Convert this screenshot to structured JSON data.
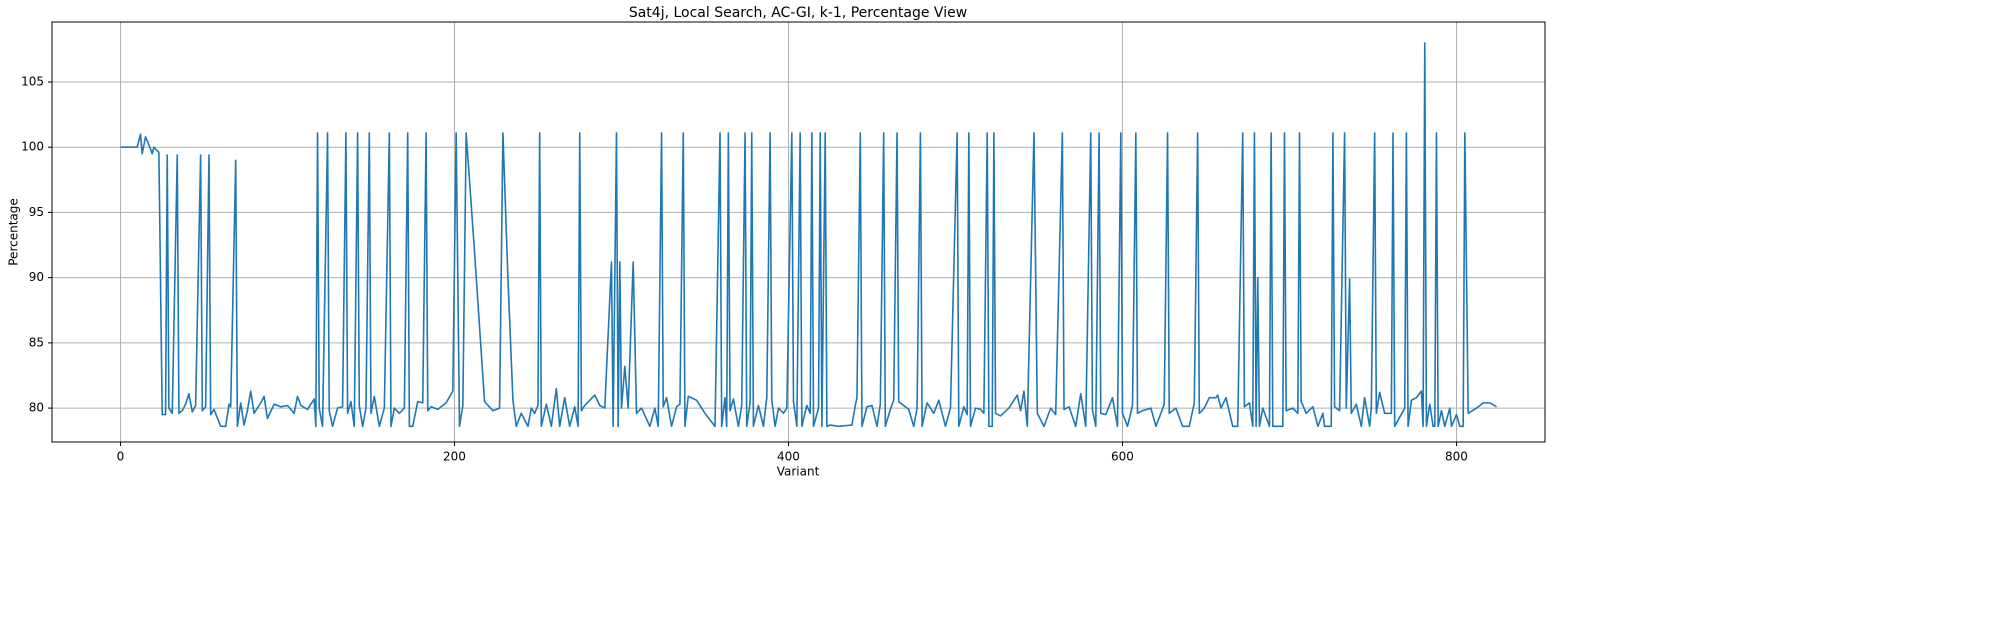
{
  "chart_data": {
    "type": "line",
    "title": "Sat4j, Local Search, AC-GI, k-1, Percentage View",
    "x_label": "Variant",
    "y_label": "Percentage",
    "xlim": [
      -41,
      853
    ],
    "ylim": [
      77.4,
      109.6
    ],
    "xticks": [
      0,
      200,
      400,
      600,
      800
    ],
    "yticks": [
      80,
      85,
      90,
      95,
      100,
      105
    ],
    "grid": true,
    "x": [
      0,
      5,
      10,
      12,
      13,
      15,
      17,
      19,
      20,
      23,
      25,
      27,
      28,
      29,
      31,
      34,
      35,
      37,
      39,
      41,
      43,
      45,
      48,
      49,
      51,
      53,
      54,
      56,
      60,
      63,
      65,
      66,
      69,
      70,
      72,
      74,
      76,
      78,
      80,
      84,
      86,
      88,
      92,
      96,
      100,
      104,
      106,
      108,
      112,
      116,
      117,
      118,
      119,
      121,
      124,
      125,
      127,
      130,
      133,
      135,
      136,
      138,
      140,
      142,
      143,
      145,
      147,
      149,
      150,
      152,
      155,
      158,
      161,
      162,
      164,
      167,
      170,
      172,
      173,
      175,
      178,
      181,
      183,
      184,
      186,
      190,
      195,
      199,
      201,
      203,
      205,
      207,
      212,
      218,
      223,
      227,
      229,
      232,
      235,
      237,
      240,
      244,
      246,
      248,
      250,
      251,
      252,
      255,
      258,
      261,
      263,
      266,
      269,
      272,
      274,
      275,
      276,
      278,
      284,
      287,
      290,
      294,
      295,
      297,
      298,
      299,
      300,
      302,
      304,
      307,
      309,
      312,
      317,
      320,
      322,
      324,
      325,
      327,
      330,
      333,
      335,
      337,
      338,
      340,
      345,
      350,
      356,
      359,
      360,
      362,
      363,
      364,
      365,
      367,
      370,
      372,
      374,
      375,
      377,
      378,
      379,
      382,
      385,
      387,
      389,
      390,
      392,
      394,
      397,
      399,
      402,
      403,
      405,
      407,
      408,
      411,
      413,
      414,
      415,
      418,
      419,
      420,
      422,
      423,
      425,
      430,
      438,
      440,
      441,
      443,
      444,
      447,
      450,
      453,
      455,
      457,
      458,
      461,
      463,
      465,
      466,
      469,
      472,
      475,
      477,
      479,
      480,
      483,
      487,
      490,
      494,
      497,
      501,
      502,
      505,
      507,
      508,
      509,
      512,
      515,
      517,
      519,
      520,
      522,
      523,
      524,
      527,
      532,
      537,
      539,
      541,
      543,
      547,
      549,
      553,
      557,
      560,
      564,
      565,
      568,
      572,
      575,
      578,
      581,
      582,
      584,
      586,
      587,
      590,
      594,
      597,
      599,
      600,
      603,
      606,
      608,
      609,
      612,
      617,
      620,
      623,
      625,
      627,
      628,
      632,
      636,
      640,
      643,
      645,
      646,
      649,
      652,
      656,
      657,
      659,
      662,
      666,
      669,
      672,
      673,
      676,
      678,
      679,
      680,
      681,
      682,
      684,
      688,
      689,
      690,
      692,
      696,
      697,
      698,
      702,
      705,
      706,
      707,
      710,
      714,
      717,
      720,
      721,
      723,
      725,
      726,
      727,
      730,
      733,
      734,
      736,
      737,
      740,
      743,
      745,
      748,
      749,
      751,
      752,
      754,
      757,
      761,
      762,
      763,
      769,
      770,
      771,
      773,
      776,
      779,
      780,
      781,
      782,
      784,
      786,
      787,
      788,
      789,
      791,
      793,
      796,
      797,
      800,
      802,
      804,
      805,
      807,
      812,
      816,
      820,
      824
    ],
    "series": [
      {
        "color": "#1f77b4",
        "values": [
          100,
          100,
          100,
          101,
          99.5,
          100.8,
          100.2,
          99.5,
          100,
          99.6,
          79.5,
          79.5,
          99.4,
          80,
          79.6,
          99.4,
          79.6,
          79.8,
          80.3,
          81.1,
          79.7,
          80.2,
          99.4,
          79.8,
          80.1,
          99.4,
          79.5,
          79.9,
          78.6,
          78.6,
          80.3,
          80.1,
          99,
          78.6,
          80.4,
          78.7,
          79.8,
          81.3,
          79.6,
          80.4,
          80.9,
          79.2,
          80.3,
          80.1,
          80.2,
          79.6,
          80.9,
          80.2,
          79.9,
          80.7,
          78.6,
          101.1,
          80,
          78.6,
          101.1,
          79.8,
          78.6,
          80,
          80.1,
          101.1,
          79.6,
          80.5,
          78.6,
          101.1,
          80.2,
          78.6,
          80,
          101.1,
          79.6,
          80.9,
          78.6,
          80,
          101.1,
          78.6,
          80,
          79.6,
          80,
          101.1,
          78.6,
          78.6,
          80.5,
          80.4,
          101.1,
          79.8,
          80.1,
          79.9,
          80.4,
          81.3,
          101.1,
          78.6,
          80.2,
          101.1,
          92,
          80.5,
          79.8,
          80,
          101.1,
          90,
          80.6,
          78.6,
          79.6,
          78.6,
          80,
          79.6,
          80.2,
          101.1,
          78.6,
          80.3,
          78.6,
          81.5,
          78.6,
          80.8,
          78.6,
          80.1,
          78.6,
          101.1,
          79.8,
          80.2,
          81,
          80.2,
          80,
          91.2,
          78.6,
          101.1,
          78.6,
          91.2,
          80,
          83.2,
          80,
          91.2,
          79.6,
          80,
          78.6,
          80,
          78.6,
          101.1,
          80.1,
          80.8,
          78.6,
          80.1,
          80.3,
          101.1,
          78.6,
          80.9,
          80.6,
          79.6,
          78.6,
          101.1,
          78.6,
          80.8,
          78.6,
          101.1,
          79.8,
          80.7,
          78.6,
          80.2,
          101.1,
          78.6,
          80.4,
          101.1,
          78.6,
          80.2,
          78.6,
          80.8,
          101.1,
          80.6,
          78.6,
          80,
          79.6,
          80,
          101.1,
          80.5,
          78.6,
          101.1,
          78.6,
          80.2,
          79.6,
          101.1,
          78.6,
          80,
          101.1,
          78.6,
          101.1,
          78.6,
          78.7,
          78.6,
          78.7,
          80.2,
          80.8,
          101.1,
          78.6,
          80.1,
          80.2,
          78.6,
          80.3,
          101.1,
          78.6,
          79.9,
          80.6,
          101.1,
          80.5,
          80.2,
          79.9,
          78.6,
          80,
          101.1,
          78.6,
          80.4,
          79.6,
          80.6,
          78.6,
          80,
          101.1,
          78.6,
          80.1,
          79.5,
          101.1,
          78.6,
          80,
          79.9,
          79.6,
          101.1,
          78.6,
          78.6,
          101.1,
          79.6,
          79.4,
          80,
          81,
          79.8,
          81.3,
          78.6,
          101.1,
          79.6,
          78.6,
          80,
          79.5,
          101.1,
          79.9,
          80.1,
          78.6,
          81.1,
          78.6,
          101.1,
          79.9,
          78.6,
          101.1,
          79.6,
          79.5,
          80.8,
          78.6,
          101.1,
          79.6,
          78.6,
          80.2,
          101.1,
          79.6,
          79.8,
          80,
          78.6,
          79.6,
          80.3,
          101.1,
          79.6,
          80,
          78.6,
          78.6,
          80.4,
          101.1,
          79.6,
          80,
          80.8,
          80.8,
          81,
          80,
          80.8,
          78.6,
          78.6,
          101.1,
          80.1,
          80.4,
          78.6,
          101.1,
          78.6,
          90,
          78.6,
          80,
          78.6,
          101.1,
          78.6,
          78.6,
          78.6,
          101.1,
          79.8,
          80,
          79.6,
          101.1,
          80.5,
          79.6,
          80.1,
          78.6,
          79.6,
          78.6,
          78.6,
          78.6,
          101.1,
          80.1,
          79.8,
          101.1,
          80,
          89.9,
          79.6,
          80.3,
          78.6,
          80.8,
          78.6,
          80,
          101.1,
          79.6,
          81.2,
          79.6,
          79.6,
          101.1,
          78.6,
          80,
          101.1,
          78.6,
          80.6,
          80.8,
          81.3,
          78.6,
          108,
          78.6,
          80.3,
          78.6,
          78.6,
          101.1,
          78.6,
          79.8,
          78.6,
          80,
          78.6,
          79.5,
          78.6,
          78.6,
          101.1,
          79.6,
          80,
          80.4,
          80.4,
          80.1
        ]
      }
    ]
  }
}
